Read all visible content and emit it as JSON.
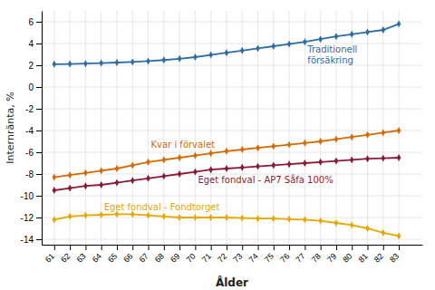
{
  "chart_data": {
    "type": "line",
    "xlabel": "Ålder",
    "ylabel": "Internränta, %",
    "x": [
      61,
      62,
      63,
      64,
      65,
      66,
      67,
      68,
      69,
      70,
      71,
      72,
      73,
      74,
      75,
      76,
      77,
      78,
      79,
      80,
      81,
      82,
      83
    ],
    "xlim": [
      60.2,
      84.5
    ],
    "xticks": [
      61,
      62,
      63,
      64,
      65,
      66,
      67,
      68,
      69,
      70,
      71,
      72,
      73,
      74,
      75,
      76,
      77,
      78,
      79,
      80,
      81,
      82,
      83
    ],
    "ylim": [
      -14.5,
      7.0
    ],
    "yticks": [
      -14,
      -12,
      -10,
      -8,
      -6,
      -4,
      -2,
      0,
      2,
      4,
      6
    ],
    "grid": true,
    "marker": "diamond",
    "series": [
      {
        "color": "#2e6da4",
        "values": [
          2.1,
          2.12,
          2.15,
          2.2,
          2.25,
          2.3,
          2.38,
          2.48,
          2.6,
          2.75,
          2.95,
          3.15,
          3.35,
          3.55,
          3.75,
          3.95,
          4.15,
          4.4,
          4.65,
          4.85,
          5.05,
          5.25,
          5.8
        ]
      },
      {
        "color": "#d46a00",
        "values": [
          -8.3,
          -8.1,
          -7.9,
          -7.7,
          -7.5,
          -7.2,
          -6.9,
          -6.7,
          -6.5,
          -6.3,
          -6.1,
          -5.9,
          -5.75,
          -5.6,
          -5.45,
          -5.3,
          -5.15,
          -5.0,
          -4.8,
          -4.6,
          -4.4,
          -4.2,
          -4.0
        ]
      },
      {
        "color": "#8b1a35",
        "values": [
          -9.5,
          -9.3,
          -9.1,
          -9.0,
          -8.8,
          -8.6,
          -8.4,
          -8.2,
          -8.0,
          -7.8,
          -7.6,
          -7.5,
          -7.4,
          -7.3,
          -7.2,
          -7.1,
          -7.0,
          -6.9,
          -6.8,
          -6.7,
          -6.6,
          -6.55,
          -6.5
        ]
      },
      {
        "color": "#e5a800",
        "values": [
          -12.2,
          -11.9,
          -11.8,
          -11.75,
          -11.7,
          -11.7,
          -11.8,
          -11.9,
          -12.0,
          -12.0,
          -12.0,
          -12.0,
          -12.05,
          -12.1,
          -12.1,
          -12.15,
          -12.2,
          -12.3,
          -12.5,
          -12.7,
          -13.0,
          -13.4,
          -13.7
        ]
      }
    ],
    "annotations": [
      {
        "text": "Traditionell",
        "color": "#2e6da4"
      },
      {
        "text": "försäkring",
        "color": "#2e6da4"
      },
      {
        "text": "Kvar i förvalet",
        "color": "#d46a00"
      },
      {
        "text": "Eget fondval - AP7 Såfa 100%",
        "color": "#8b1a35"
      },
      {
        "text": "Eget fondval - Fondtorget",
        "color": "#e5a800"
      }
    ]
  }
}
